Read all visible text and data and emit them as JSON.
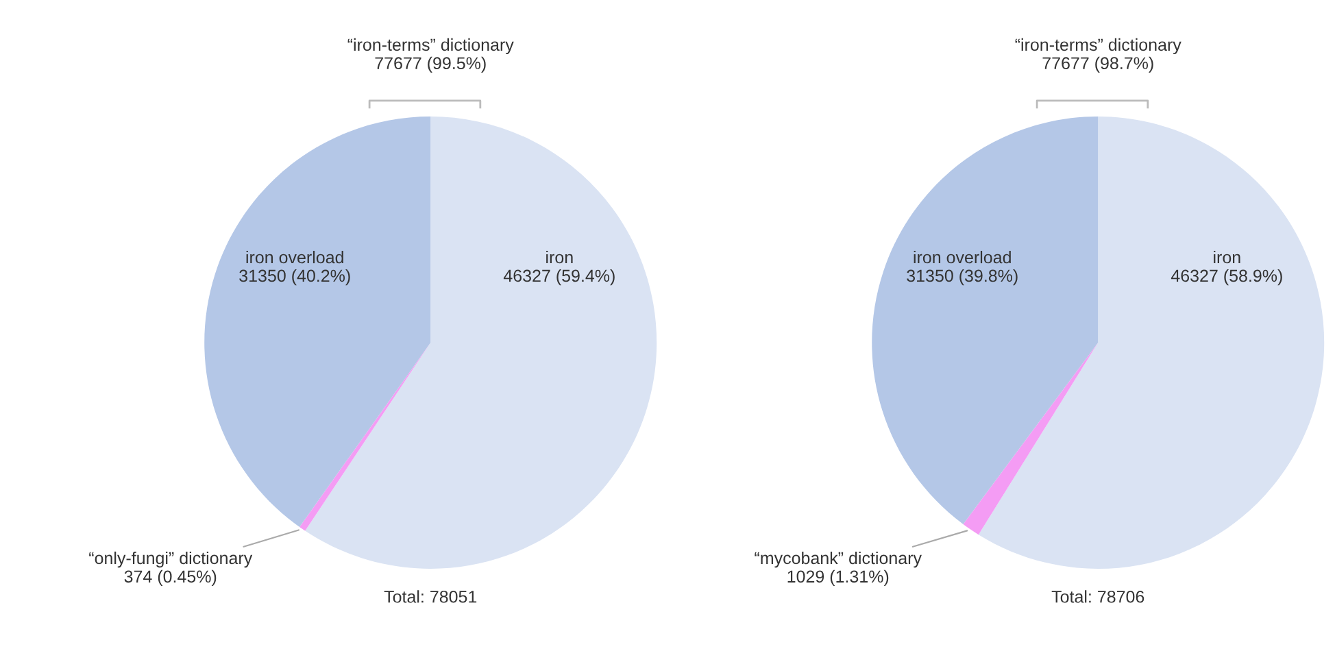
{
  "chart_data": [
    {
      "type": "pie",
      "categories": [
        "iron",
        "“only-fungi” dictionary",
        "iron overload"
      ],
      "values": [
        46327,
        374,
        31350
      ],
      "colors": [
        "#dae3f3",
        "#f49cf4",
        "#b4c7e7"
      ],
      "value_labels": [
        "46327 (59.4%)",
        "374 (0.45%)",
        "31350 (40.2%)"
      ],
      "annotations": [
        "“iron-terms” dictionary\n77677 (99.5%)",
        "Total: 78051"
      ]
    },
    {
      "type": "pie",
      "categories": [
        "iron",
        "“mycobank” dictionary",
        "iron overload"
      ],
      "values": [
        46327,
        1029,
        31350
      ],
      "colors": [
        "#dae3f3",
        "#f49cf4",
        "#b4c7e7"
      ],
      "value_labels": [
        "46327 (58.9%)",
        "1029 (1.31%)",
        "31350 (39.8%)"
      ],
      "annotations": [
        "“iron-terms” dictionary\n77677 (98.7%)",
        "Total: 78706"
      ]
    }
  ]
}
